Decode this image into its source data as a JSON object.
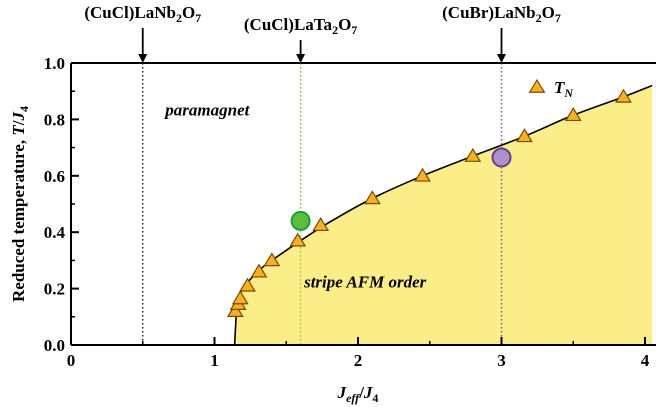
{
  "chart_data": {
    "type": "scatter",
    "xlabel": {
      "main": "J",
      "sub": "eff",
      "sep": "/",
      "main2": "J",
      "sub2": "4"
    },
    "ylabel": {
      "main": "Reduced temperature, ",
      "var": "T",
      "sep": "/",
      "var2": "J",
      "sub2": "4"
    },
    "xlim": [
      0,
      4
    ],
    "ylim": [
      0,
      1.0
    ],
    "x_ticks": [
      "0",
      "1",
      "2",
      "3",
      "4"
    ],
    "y_ticks": [
      "0.0",
      "0.2",
      "0.4",
      "0.6",
      "0.8",
      "1.0"
    ],
    "colors": {
      "fill": "#fbee88",
      "triangle_fill": "#f8b020",
      "triangle_stroke": "#7a4a00",
      "green": "#5cbf3c",
      "green_stroke": "#1b9e3a",
      "purple": "#a993c8",
      "purple_stroke": "#6a3d8f",
      "line_green": "#8fc14a",
      "line_purple": "#8b4f9e"
    },
    "series": [
      {
        "name": "T_N",
        "legend": {
          "main": "T",
          "sub": "N"
        },
        "marker": "triangle",
        "points": [
          [
            1.145,
            0.12
          ],
          [
            1.165,
            0.145
          ],
          [
            1.18,
            0.165
          ],
          [
            1.23,
            0.21
          ],
          [
            1.31,
            0.26
          ],
          [
            1.4,
            0.3
          ],
          [
            1.58,
            0.37
          ],
          [
            1.74,
            0.425
          ],
          [
            2.1,
            0.52
          ],
          [
            2.45,
            0.6
          ],
          [
            2.8,
            0.67
          ],
          [
            3.16,
            0.74
          ],
          [
            3.5,
            0.815
          ],
          [
            3.85,
            0.88
          ]
        ]
      }
    ],
    "phase_boundary": [
      [
        1.14,
        0.0
      ],
      [
        1.16,
        0.15
      ],
      [
        1.2,
        0.2
      ],
      [
        1.3,
        0.26
      ],
      [
        1.4,
        0.3
      ],
      [
        1.6,
        0.37
      ],
      [
        1.8,
        0.435
      ],
      [
        2.1,
        0.52
      ],
      [
        2.45,
        0.6
      ],
      [
        2.8,
        0.67
      ],
      [
        3.16,
        0.74
      ],
      [
        3.5,
        0.815
      ],
      [
        3.85,
        0.88
      ],
      [
        4.05,
        0.92
      ]
    ],
    "compounds": [
      {
        "x": 0.5,
        "label": {
          "a": "(CuCl)LaNb",
          "s1": "2",
          "b": "O",
          "s2": "7"
        },
        "line": "dotted-black",
        "y_pt": null
      },
      {
        "x": 1.6,
        "label": {
          "a": "(CuCl)LaTa",
          "s1": "2",
          "b": "O",
          "s2": "7"
        },
        "line": "dotted-green",
        "y_pt": 0.44
      },
      {
        "x": 3.0,
        "label": {
          "a": "(CuBr)LaNb",
          "s1": "2",
          "b": "O",
          "s2": "7"
        },
        "line": "dotted-purple",
        "y_pt": 0.665
      }
    ],
    "regions": [
      {
        "label": "paramagnet",
        "x": 0.95,
        "y": 0.835
      },
      {
        "label": "stripe AFM order",
        "x": 2.05,
        "y": 0.225
      }
    ]
  }
}
